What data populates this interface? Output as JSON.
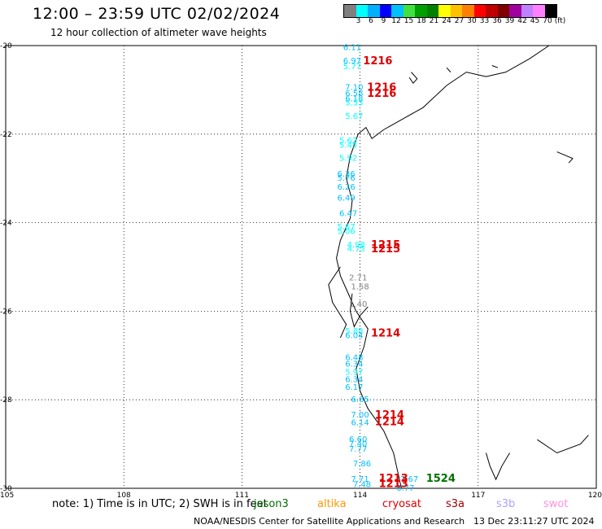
{
  "header": {
    "title": "12:00 – 23:59 UTC 02/02/2024",
    "subtitle": "12 hour collection of altimeter wave heights"
  },
  "colorbar": {
    "colors": [
      "#808080",
      "#00ffff",
      "#00b0ff",
      "#0000ff",
      "#00c0ff",
      "#40e040",
      "#00a000",
      "#008000",
      "#ffff00",
      "#ffc000",
      "#ff8000",
      "#ff0000",
      "#c00000",
      "#800000",
      "#a000a0",
      "#c080ff",
      "#ff80ff",
      "#000000"
    ],
    "labels": [
      "3",
      "6",
      "9",
      "12",
      "15",
      "18",
      "21",
      "24",
      "27",
      "30",
      "33",
      "36",
      "39",
      "42",
      "45",
      "70",
      "(ft)"
    ]
  },
  "map": {
    "lon_ticks": [
      "105",
      "108",
      "111",
      "114",
      "117",
      "120"
    ],
    "lat_ticks": [
      "-20",
      "-22",
      "-24",
      "-26",
      "-28",
      "-30"
    ]
  },
  "wave_labels": [
    {
      "text": "6.11",
      "lon": 113.8,
      "lat": -20.05,
      "color": "#00c0ff"
    },
    {
      "text": "6.97",
      "lon": 113.8,
      "lat": -20.35,
      "color": "#00c0ff"
    },
    {
      "text": "5.77",
      "lon": 113.8,
      "lat": -20.48,
      "color": "#00ffff"
    },
    {
      "text": "7.10",
      "lon": 113.85,
      "lat": -20.95,
      "color": "#00c0ff"
    },
    {
      "text": "6.58",
      "lon": 113.85,
      "lat": -21.08,
      "color": "#00c0ff"
    },
    {
      "text": "6.18",
      "lon": 113.85,
      "lat": -21.2,
      "color": "#00c0ff"
    },
    {
      "text": "5.53",
      "lon": 113.85,
      "lat": -21.3,
      "color": "#00ffff"
    },
    {
      "text": "5.67",
      "lon": 113.85,
      "lat": -21.6,
      "color": "#00ffff"
    },
    {
      "text": "5.62",
      "lon": 113.7,
      "lat": -22.15,
      "color": "#00ffff"
    },
    {
      "text": "5.45",
      "lon": 113.7,
      "lat": -22.25,
      "color": "#00ffff"
    },
    {
      "text": "5.92",
      "lon": 113.7,
      "lat": -22.55,
      "color": "#00ffff"
    },
    {
      "text": "6.36",
      "lon": 113.65,
      "lat": -22.9,
      "color": "#00c0ff"
    },
    {
      "text": "5.76",
      "lon": 113.65,
      "lat": -23.0,
      "color": "#00c0ff"
    },
    {
      "text": "6.26",
      "lon": 113.65,
      "lat": -23.2,
      "color": "#00c0ff"
    },
    {
      "text": "6.49",
      "lon": 113.65,
      "lat": -23.45,
      "color": "#00c0ff"
    },
    {
      "text": "6.47",
      "lon": 113.7,
      "lat": -23.8,
      "color": "#00c0ff"
    },
    {
      "text": "5.67",
      "lon": 113.65,
      "lat": -24.1,
      "color": "#00ffff"
    },
    {
      "text": "5.06",
      "lon": 113.65,
      "lat": -24.2,
      "color": "#00ffff"
    },
    {
      "text": "4.98",
      "lon": 113.9,
      "lat": -24.5,
      "color": "#00ffff"
    },
    {
      "text": "4.75",
      "lon": 113.9,
      "lat": -24.6,
      "color": "#00ffff"
    },
    {
      "text": "2.71",
      "lon": 113.95,
      "lat": -25.25,
      "color": "#808080"
    },
    {
      "text": "1.58",
      "lon": 114.0,
      "lat": -25.45,
      "color": "#808080"
    },
    {
      "text": "1.40",
      "lon": 113.95,
      "lat": -25.85,
      "color": "#808080"
    },
    {
      "text": "5.88",
      "lon": 113.85,
      "lat": -26.45,
      "color": "#00ffff"
    },
    {
      "text": "6.04",
      "lon": 113.85,
      "lat": -26.55,
      "color": "#00c0ff"
    },
    {
      "text": "6.48",
      "lon": 113.85,
      "lat": -27.05,
      "color": "#00c0ff"
    },
    {
      "text": "6.34",
      "lon": 113.85,
      "lat": -27.2,
      "color": "#00c0ff"
    },
    {
      "text": "5.97",
      "lon": 113.85,
      "lat": -27.38,
      "color": "#00ffff"
    },
    {
      "text": "6.34",
      "lon": 113.85,
      "lat": -27.55,
      "color": "#00c0ff"
    },
    {
      "text": "6.17",
      "lon": 113.85,
      "lat": -27.72,
      "color": "#00c0ff"
    },
    {
      "text": "6.65",
      "lon": 114.0,
      "lat": -28.0,
      "color": "#00c0ff"
    },
    {
      "text": "7.00",
      "lon": 114.0,
      "lat": -28.35,
      "color": "#00c0ff"
    },
    {
      "text": "6.14",
      "lon": 114.0,
      "lat": -28.52,
      "color": "#00c0ff"
    },
    {
      "text": "6.60",
      "lon": 113.95,
      "lat": -28.9,
      "color": "#00c0ff"
    },
    {
      "text": "7.40",
      "lon": 113.95,
      "lat": -29.0,
      "color": "#00c0ff"
    },
    {
      "text": "7.77",
      "lon": 113.95,
      "lat": -29.12,
      "color": "#00c0ff"
    },
    {
      "text": "7.86",
      "lon": 114.05,
      "lat": -29.45,
      "color": "#00c0ff"
    },
    {
      "text": "7.71",
      "lon": 114.0,
      "lat": -29.8,
      "color": "#00c0ff"
    },
    {
      "text": "7.48",
      "lon": 114.05,
      "lat": -29.92,
      "color": "#00c0ff"
    },
    {
      "text": "7.67",
      "lon": 115.25,
      "lat": -29.8,
      "color": "#00c0ff"
    },
    {
      "text": "6.77",
      "lon": 115.15,
      "lat": -30.0,
      "color": "#00c0ff"
    }
  ],
  "pass_labels": [
    {
      "text": "1216",
      "lon": 114.45,
      "lat": -20.35,
      "color": "#e00000"
    },
    {
      "text": "1216",
      "lon": 114.55,
      "lat": -20.95,
      "color": "#e00000"
    },
    {
      "text": "1216",
      "lon": 114.55,
      "lat": -21.08,
      "color": "#e00000"
    },
    {
      "text": "1215",
      "lon": 114.65,
      "lat": -24.5,
      "color": "#e00000"
    },
    {
      "text": "1215",
      "lon": 114.65,
      "lat": -24.6,
      "color": "#e00000"
    },
    {
      "text": "1214",
      "lon": 114.65,
      "lat": -26.5,
      "color": "#e00000"
    },
    {
      "text": "1214",
      "lon": 114.75,
      "lat": -28.35,
      "color": "#e00000"
    },
    {
      "text": "1214",
      "lon": 114.75,
      "lat": -28.5,
      "color": "#e00000"
    },
    {
      "text": "1213",
      "lon": 114.85,
      "lat": -29.78,
      "color": "#e00000"
    },
    {
      "text": "1213",
      "lon": 114.85,
      "lat": -29.9,
      "color": "#e00000"
    },
    {
      "text": "1524",
      "lon": 116.05,
      "lat": -29.78,
      "color": "#007000"
    }
  ],
  "footer": {
    "note": "note:  1) Time is in UTC; 2) SWH is in feet",
    "legend": [
      {
        "label": "jason3",
        "color": "#007000"
      },
      {
        "label": "altika",
        "color": "#ff9900"
      },
      {
        "label": "cryosat",
        "color": "#e00000"
      },
      {
        "label": "s3a",
        "color": "#a00000"
      },
      {
        "label": "s3b",
        "color": "#b0a0ff"
      },
      {
        "label": "swot",
        "color": "#ff90e0"
      }
    ],
    "credit": "NOAA/NESDIS Center for Satellite Applications and Research",
    "timestamp": "13 Dec 23:11:27 UTC 2024"
  }
}
